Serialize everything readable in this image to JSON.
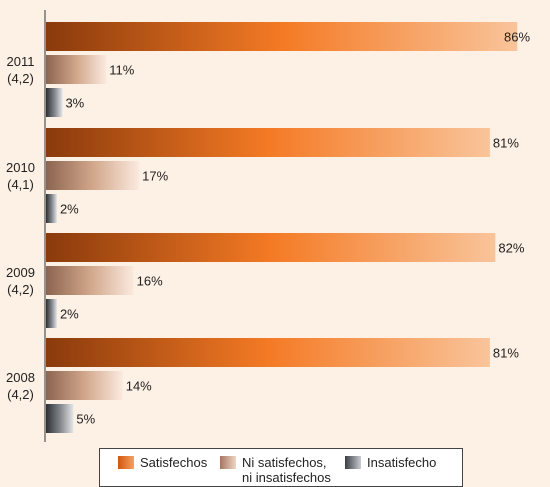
{
  "chart_data": {
    "type": "bar",
    "orientation": "horizontal",
    "xlim": [
      0,
      100
    ],
    "categories": [
      {
        "year": "2011",
        "score": "(4,2)"
      },
      {
        "year": "2010",
        "score": "(4,1)"
      },
      {
        "year": "2009",
        "score": "(4,2)"
      },
      {
        "year": "2008",
        "score": "(4,2)"
      }
    ],
    "series": [
      {
        "name": "Satisfechos",
        "values": [
          86,
          81,
          82,
          81
        ],
        "labels": [
          "86%",
          "81%",
          "82%",
          "81%"
        ],
        "color": "#f07422"
      },
      {
        "name": "Ni satisfechos, ni insatisfechos",
        "values": [
          11,
          17,
          16,
          14
        ],
        "labels": [
          "11%",
          "17%",
          "16%",
          "14%"
        ],
        "color": "#c49578"
      },
      {
        "name": "Insatisfecho",
        "values": [
          3,
          2,
          2,
          5
        ],
        "labels": [
          "3%",
          "2%",
          "2%",
          "5%"
        ],
        "color": "#6e7378"
      }
    ],
    "legend": {
      "position": "bottom",
      "items": [
        "Satisfechos",
        "Ni satisfechos,\nni insatisfechos",
        "Insatisfecho"
      ]
    }
  }
}
